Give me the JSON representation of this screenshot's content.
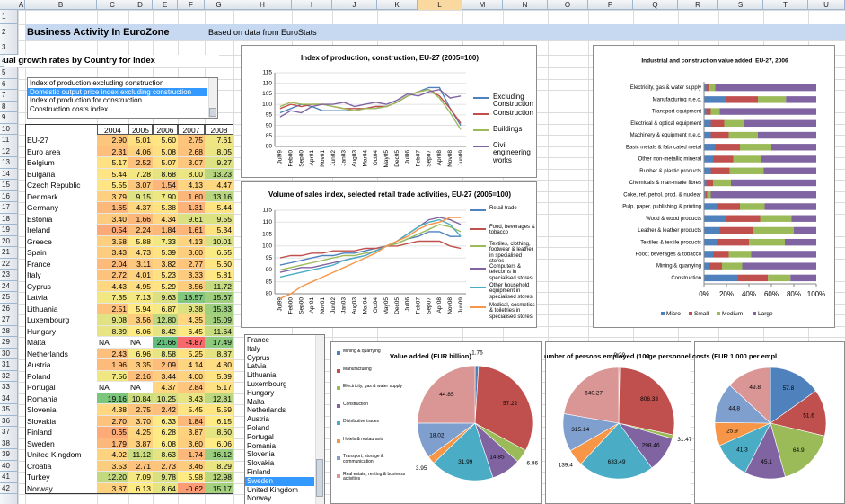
{
  "spreadsheet": {
    "columns": [
      "A",
      "B",
      "C",
      "D",
      "E",
      "F",
      "G",
      "H",
      "I",
      "J",
      "K",
      "L",
      "M",
      "N",
      "O",
      "P",
      "Q",
      "R",
      "S",
      "T",
      "U"
    ],
    "selected_column": "L",
    "rows": [
      1,
      2,
      3,
      4,
      5,
      6,
      7,
      8,
      9,
      10,
      11,
      12,
      13,
      14,
      15,
      16,
      17,
      18,
      19,
      20,
      21,
      22,
      23,
      24,
      25,
      26,
      27,
      28,
      29,
      30,
      31,
      32,
      33,
      34,
      35,
      36,
      37,
      38,
      39,
      40,
      41,
      42
    ],
    "title": "Business Activity In EuroZone",
    "source": "Based on data from EuroStats",
    "table_heading": "ual growth rates by Country for Index",
    "index_list": {
      "items": [
        "Index of production excluding construction",
        "Domestic output price index excluding construction",
        "Index of production for construction",
        "Construction costs index"
      ],
      "selected": 1
    },
    "table": {
      "header": [
        "2004",
        "2005",
        "2006",
        "2007",
        "2008"
      ],
      "rows": [
        [
          "EU-27",
          "2.90",
          "5.01",
          "5.60",
          "2.75",
          "7.61"
        ],
        [
          "Euro area",
          "2.31",
          "4.06",
          "5.08",
          "2.68",
          "8.05"
        ],
        [
          "Belgium",
          "5.17",
          "2.52",
          "5.07",
          "3.07",
          "9.27"
        ],
        [
          "Bulgaria",
          "5.44",
          "7.28",
          "8.68",
          "8.00",
          "13.23"
        ],
        [
          "Czech Republic",
          "5.55",
          "3.07",
          "1.54",
          "4.13",
          "4.47"
        ],
        [
          "Denmark",
          "3.79",
          "9.15",
          "7.90",
          "1.60",
          "13.16"
        ],
        [
          "Germany",
          "1.65",
          "4.37",
          "5.38",
          "1.31",
          "5.44"
        ],
        [
          "Estonia",
          "3.40",
          "1.66",
          "4.34",
          "9.61",
          "9.55"
        ],
        [
          "Ireland",
          "0.54",
          "2.24",
          "1.84",
          "1.61",
          "5.34"
        ],
        [
          "Greece",
          "3.58",
          "5.88",
          "7.33",
          "4.13",
          "10.01"
        ],
        [
          "Spain",
          "3.43",
          "4.73",
          "5.39",
          "3.60",
          "6.55"
        ],
        [
          "France",
          "2.04",
          "3.11",
          "3.82",
          "2.77",
          "5.60"
        ],
        [
          "Italy",
          "2.72",
          "4.01",
          "5.23",
          "3.33",
          "5.81"
        ],
        [
          "Cyprus",
          "4.43",
          "4.95",
          "5.29",
          "3.56",
          "11.72"
        ],
        [
          "Latvia",
          "7.35",
          "7.13",
          "9.63",
          "18.57",
          "15.67"
        ],
        [
          "Lithuania",
          "2.51",
          "5.94",
          "6.87",
          "9.38",
          "15.83"
        ],
        [
          "Luxembourg",
          "9.08",
          "3.56",
          "12.80",
          "4.35",
          "15.09"
        ],
        [
          "Hungary",
          "8.39",
          "6.06",
          "8.42",
          "6.45",
          "11.64"
        ],
        [
          "Malta",
          "NA",
          "NA",
          "21.66",
          "-4.87",
          "17.49"
        ],
        [
          "Netherlands",
          "2.43",
          "6.96",
          "8.58",
          "5.25",
          "8.87"
        ],
        [
          "Austria",
          "1.96",
          "3.35",
          "2.09",
          "4.14",
          "4.80"
        ],
        [
          "Poland",
          "7.56",
          "2.16",
          "3.44",
          "4.00",
          "5.39"
        ],
        [
          "Portugal",
          "NA",
          "NA",
          "4.37",
          "2.84",
          "5.17"
        ],
        [
          "Romania",
          "19.16",
          "10.84",
          "10.25",
          "8.43",
          "12.81"
        ],
        [
          "Slovenia",
          "4.38",
          "2.75",
          "2.42",
          "5.45",
          "5.59"
        ],
        [
          "Slovakia",
          "2.70",
          "3.70",
          "6.33",
          "1.84",
          "6.15"
        ],
        [
          "Finland",
          "0.65",
          "4.25",
          "6.28",
          "3.87",
          "8.60"
        ],
        [
          "Sweden",
          "1.79",
          "3.87",
          "6.08",
          "3.60",
          "6.06"
        ],
        [
          "United Kingdom",
          "4.02",
          "11.12",
          "8.63",
          "1.74",
          "16.12"
        ],
        [
          "Croatia",
          "3.53",
          "2.71",
          "2.73",
          "3.46",
          "8.29"
        ],
        [
          "Turkey",
          "12.20",
          "7.09",
          "9.78",
          "5.98",
          "12.98"
        ],
        [
          "Norway",
          "3.87",
          "6.13",
          "8.64",
          "-0.62",
          "15.17"
        ]
      ]
    },
    "country_list": {
      "items": [
        "France",
        "Italy",
        "Cyprus",
        "Latvia",
        "Lithuania",
        "Luxembourg",
        "Hungary",
        "Malta",
        "Netherlands",
        "Austria",
        "Poland",
        "Portugal",
        "Romania",
        "Slovenia",
        "Slovakia",
        "Finland",
        "Sweden",
        "United Kingdom",
        "Norway"
      ],
      "selected": 16
    }
  },
  "chart_data": [
    {
      "type": "line",
      "title": "Index of production, construction, EU-27 (2005=100)",
      "categories": [
        "Jul99",
        "Feb00",
        "Sep00",
        "Apr01",
        "Nov01",
        "Jun02",
        "Jan03",
        "Aug03",
        "Mar04",
        "Oct04",
        "May05",
        "Dec05",
        "Jul06",
        "Feb07",
        "Sep07",
        "Apr08",
        "Nov08",
        "Jun09"
      ],
      "ylim": [
        80,
        115
      ],
      "yticks": [
        80,
        85,
        90,
        95,
        100,
        105,
        110,
        115
      ],
      "grid": true,
      "series": [
        {
          "name": "Excluding Construction",
          "color": "#4f81bd",
          "values": [
            96,
            98,
            100,
            99,
            97,
            97,
            97,
            97,
            98,
            99,
            99,
            101,
            104,
            106,
            108,
            108,
            98,
            90
          ]
        },
        {
          "name": "Construction",
          "color": "#c0504d",
          "values": [
            98,
            100,
            99,
            100,
            100,
            99,
            98,
            98,
            98,
            99,
            99,
            101,
            104,
            106,
            107,
            104,
            98,
            91
          ]
        },
        {
          "name": "Buildings",
          "color": "#9bbb59",
          "values": [
            99,
            101,
            100,
            100,
            100,
            99,
            98,
            97,
            98,
            98,
            99,
            101,
            104,
            106,
            107,
            103,
            96,
            88
          ]
        },
        {
          "name": "Civil engineering works",
          "color": "#8064a2",
          "values": [
            94,
            97,
            96,
            99,
            100,
            100,
            101,
            99,
            100,
            101,
            100,
            102,
            105,
            104,
            106,
            107,
            103,
            104
          ]
        }
      ]
    },
    {
      "type": "line",
      "title": "Volume of sales index, selected retail trade activities, EU-27 (2005=100)",
      "categories": [
        "Jul99",
        "Feb00",
        "Sep00",
        "Apr01",
        "Nov01",
        "Jun02",
        "Jan03",
        "Aug03",
        "Mar04",
        "Oct04",
        "May05",
        "Dec05",
        "Jul06",
        "Feb07",
        "Sep07",
        "Apr08",
        "Nov08",
        "Jun09"
      ],
      "ylim": [
        80,
        115
      ],
      "yticks": [
        80,
        85,
        90,
        95,
        100,
        105,
        110,
        115
      ],
      "grid": true,
      "series": [
        {
          "name": "Retail trade",
          "color": "#4f81bd",
          "values": [
            92,
            93,
            94,
            95,
            96,
            96,
            97,
            97,
            98,
            99,
            100,
            101,
            103,
            104,
            106,
            106,
            104,
            104
          ]
        },
        {
          "name": "Food, beverages & tobacco",
          "color": "#c0504d",
          "values": [
            95,
            96,
            96,
            97,
            97,
            98,
            98,
            98,
            99,
            99,
            100,
            100,
            101,
            102,
            102,
            102,
            100,
            99
          ]
        },
        {
          "name": "Textiles, clothing, footwear & leather in specialised stores",
          "color": "#9bbb59",
          "values": [
            90,
            91,
            92,
            93,
            94,
            95,
            96,
            96,
            97,
            98,
            100,
            101,
            103,
            105,
            107,
            109,
            108,
            106
          ]
        },
        {
          "name": "Computers & telecoms in specialised stores",
          "color": "#8064a2",
          "values": [
            89,
            90,
            91,
            91,
            92,
            93,
            94,
            95,
            96,
            98,
            100,
            102,
            105,
            108,
            111,
            112,
            111,
            109
          ]
        },
        {
          "name": "Other household equipment in specialised stores",
          "color": "#4bacc6",
          "values": [
            87,
            88,
            89,
            90,
            91,
            92,
            94,
            95,
            96,
            98,
            100,
            102,
            105,
            108,
            110,
            111,
            109,
            104
          ]
        },
        {
          "name": "Medical, cosmetics & toiletries in specialised stores",
          "color": "#f79646",
          "values": [
            78,
            80,
            83,
            85,
            87,
            89,
            91,
            93,
            95,
            97,
            100,
            102,
            104,
            107,
            109,
            110,
            112,
            112
          ]
        }
      ]
    },
    {
      "type": "stacked_bar_100",
      "title": "Industrial and construction value added, EU-27, 2006",
      "categories": [
        "Electricity, gas & water supply",
        "Manufacturing n.e.c.",
        "Transport equipment",
        "Electrical & optical equipment",
        "Machinery & equipment n.e.c.",
        "Basic metals & fabricated metal",
        "Other non-metallic mineral",
        "Rubber & plastic products",
        "Chemicals & man-made fibres",
        "Coke, ref. petrol. prod. & nuclear",
        "Pulp, paper, publishing & printing",
        "Wood & wood products",
        "Leather & leather products",
        "Textiles & textile products",
        "Food; beverages & tobacco",
        "Mining & quarrying",
        "Construction"
      ],
      "xlim": [
        0,
        100
      ],
      "xticks": [
        {
          "value": 0,
          "label": "0%"
        },
        {
          "value": 20,
          "label": "20%"
        },
        {
          "value": 40,
          "label": "40%"
        },
        {
          "value": 60,
          "label": "60%"
        },
        {
          "value": 80,
          "label": "80%"
        },
        {
          "value": 100,
          "label": "100%"
        }
      ],
      "series": [
        {
          "name": "Micro",
          "color": "#4f81bd",
          "values": [
            2,
            20,
            2,
            6,
            6,
            10,
            8,
            6,
            2,
            1,
            12,
            20,
            14,
            12,
            8,
            4,
            30
          ]
        },
        {
          "name": "Small",
          "color": "#c0504d",
          "values": [
            3,
            28,
            4,
            12,
            16,
            22,
            18,
            17,
            6,
            2,
            20,
            30,
            30,
            28,
            14,
            12,
            27
          ]
        },
        {
          "name": "Medium",
          "color": "#9bbb59",
          "values": [
            5,
            25,
            8,
            18,
            26,
            28,
            25,
            30,
            16,
            3,
            22,
            28,
            36,
            32,
            20,
            18,
            20
          ]
        },
        {
          "name": "Large",
          "color": "#8064a2",
          "values": [
            90,
            27,
            86,
            64,
            52,
            40,
            49,
            47,
            76,
            94,
            46,
            22,
            20,
            28,
            58,
            66,
            23
          ]
        }
      ]
    },
    {
      "type": "pie",
      "title": "Value added (EUR billion)",
      "categories": [
        "Mining & quarrying",
        "Manufacturing",
        "Electricity, gas & water supply",
        "Construction",
        "Distributive trades",
        "Hotels & restaurants",
        "Transport, storage & communication",
        "Real estate, renting & business activities"
      ],
      "values": [
        1.76,
        57.22,
        6.86,
        14.85,
        31.99,
        3.95,
        18.02,
        44.85
      ],
      "colors": [
        "#4f81bd",
        "#c0504d",
        "#9bbb59",
        "#8064a2",
        "#4bacc6",
        "#f79646",
        "#7f9fcf",
        "#d99694"
      ]
    },
    {
      "type": "pie",
      "title": "umber of persons employed (100",
      "values": [
        9.29,
        806.33,
        31.47,
        298.46,
        633.49,
        139.4,
        315.14,
        640.27
      ],
      "colors": [
        "#4f81bd",
        "#c0504d",
        "#9bbb59",
        "#8064a2",
        "#4bacc6",
        "#f79646",
        "#7f9fcf",
        "#d99694"
      ]
    },
    {
      "type": "pie",
      "title": "age personnel costs (EUR 1 000 per empl",
      "values": [
        57.8,
        51.6,
        64.9,
        45.1,
        41.3,
        25.9,
        44.8,
        49.8
      ],
      "colors": [
        "#4f81bd",
        "#c0504d",
        "#9bbb59",
        "#8064a2",
        "#4bacc6",
        "#f79646",
        "#7f9fcf",
        "#d99694"
      ]
    }
  ]
}
